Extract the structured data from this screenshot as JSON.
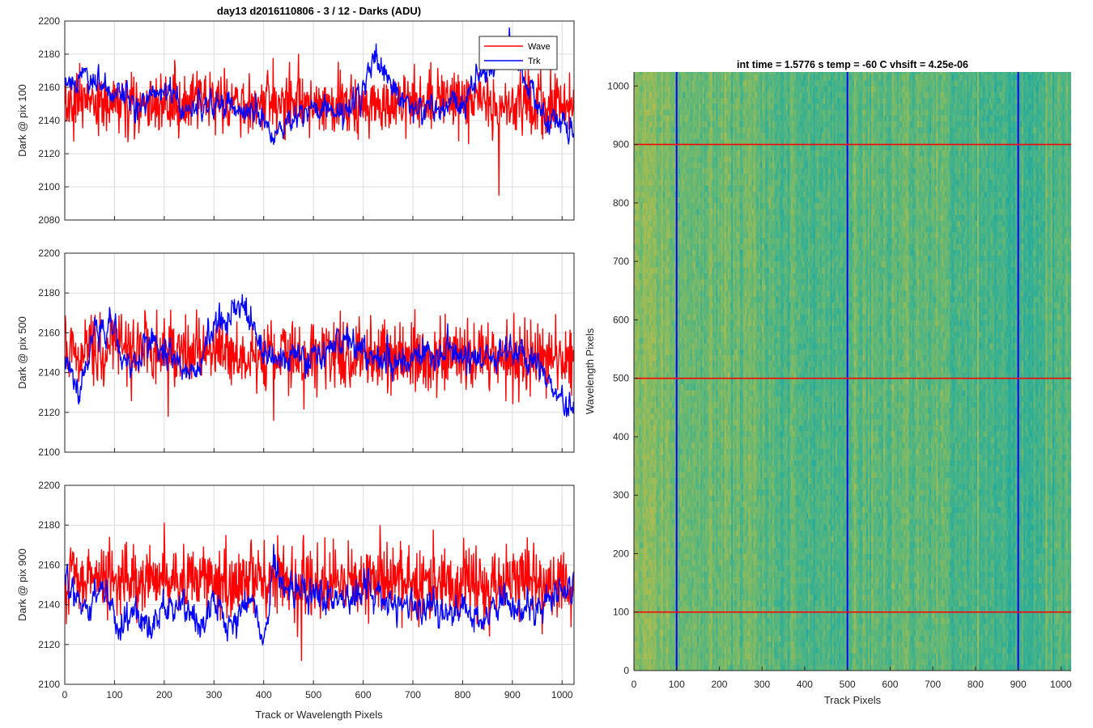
{
  "chart_data": [
    {
      "type": "line",
      "title": "day13 d2016110806 - 3 / 12 - Darks (ADU)",
      "xlabel": "",
      "ylabel": "Dark @ pix 100",
      "xlim": [
        0,
        1024
      ],
      "ylim": [
        2080,
        2200
      ],
      "xticks": [],
      "yticks": [
        2080,
        2100,
        2120,
        2140,
        2160,
        2180,
        2200
      ],
      "grid": true,
      "legend": {
        "placement": "top-right",
        "entries": [
          "Wave",
          "Trk"
        ]
      },
      "series": [
        {
          "name": "Wave",
          "color": "#ff0000",
          "x_range": [
            0,
            1023
          ],
          "mean": 2151,
          "noise": 9,
          "anchors": [
            [
              0,
              2150
            ],
            [
              150,
              2151
            ],
            [
              300,
              2150
            ],
            [
              450,
              2151
            ],
            [
              600,
              2150
            ],
            [
              750,
              2151
            ],
            [
              900,
              2150
            ],
            [
              1023,
              2150
            ]
          ],
          "extremes": [
            [
              873,
              2095
            ],
            [
              860,
              2128
            ]
          ]
        },
        {
          "name": "Trk",
          "color": "#0000ff",
          "x_range": [
            0,
            1023
          ],
          "noise": 3.5,
          "anchors": [
            [
              0,
              2160
            ],
            [
              40,
              2168
            ],
            [
              80,
              2160
            ],
            [
              130,
              2150
            ],
            [
              180,
              2156
            ],
            [
              200,
              2162
            ],
            [
              240,
              2146
            ],
            [
              280,
              2148
            ],
            [
              320,
              2150
            ],
            [
              380,
              2146
            ],
            [
              420,
              2132
            ],
            [
              460,
              2143
            ],
            [
              520,
              2150
            ],
            [
              560,
              2146
            ],
            [
              600,
              2160
            ],
            [
              625,
              2178
            ],
            [
              660,
              2158
            ],
            [
              700,
              2150
            ],
            [
              740,
              2146
            ],
            [
              780,
              2152
            ],
            [
              800,
              2146
            ],
            [
              830,
              2165
            ],
            [
              860,
              2172
            ],
            [
              880,
              2175
            ],
            [
              900,
              2188
            ],
            [
              930,
              2160
            ],
            [
              960,
              2145
            ],
            [
              990,
              2142
            ],
            [
              1023,
              2136
            ]
          ]
        }
      ]
    },
    {
      "type": "line",
      "title": "",
      "xlabel": "",
      "ylabel": "Dark @ pix 500",
      "xlim": [
        0,
        1024
      ],
      "ylim": [
        2100,
        2200
      ],
      "xticks": [],
      "yticks": [
        2100,
        2120,
        2140,
        2160,
        2180,
        2200
      ],
      "grid": true,
      "series": [
        {
          "name": "Wave",
          "color": "#ff0000",
          "x_range": [
            0,
            1023
          ],
          "noise": 9,
          "anchors": [
            [
              0,
              2150
            ],
            [
              200,
              2151
            ],
            [
              400,
              2150
            ],
            [
              600,
              2148
            ],
            [
              800,
              2148
            ],
            [
              1023,
              2146
            ]
          ],
          "extremes": [
            [
              208,
              2118
            ],
            [
              420,
              2116
            ]
          ]
        },
        {
          "name": "Trk",
          "color": "#0000ff",
          "x_range": [
            0,
            1023
          ],
          "noise": 3.5,
          "anchors": [
            [
              0,
              2150
            ],
            [
              30,
              2130
            ],
            [
              60,
              2162
            ],
            [
              100,
              2160
            ],
            [
              130,
              2140
            ],
            [
              170,
              2156
            ],
            [
              210,
              2150
            ],
            [
              260,
              2140
            ],
            [
              300,
              2160
            ],
            [
              340,
              2174
            ],
            [
              370,
              2168
            ],
            [
              400,
              2150
            ],
            [
              440,
              2146
            ],
            [
              480,
              2150
            ],
            [
              520,
              2150
            ],
            [
              560,
              2158
            ],
            [
              600,
              2150
            ],
            [
              640,
              2146
            ],
            [
              680,
              2142
            ],
            [
              720,
              2148
            ],
            [
              760,
              2150
            ],
            [
              820,
              2146
            ],
            [
              880,
              2150
            ],
            [
              920,
              2152
            ],
            [
              960,
              2140
            ],
            [
              1000,
              2124
            ],
            [
              1023,
              2120
            ]
          ]
        }
      ]
    },
    {
      "type": "line",
      "title": "",
      "xlabel": "Track or Wavelength Pixels",
      "ylabel": "Dark @ pix 900",
      "xlim": [
        0,
        1024
      ],
      "ylim": [
        2100,
        2200
      ],
      "xticks": [
        0,
        100,
        200,
        300,
        400,
        500,
        600,
        700,
        800,
        900,
        1000
      ],
      "yticks": [
        2100,
        2120,
        2140,
        2160,
        2180,
        2200
      ],
      "grid": true,
      "series": [
        {
          "name": "Wave",
          "color": "#ff0000",
          "x_range": [
            0,
            1023
          ],
          "noise": 9,
          "anchors": [
            [
              0,
              2152
            ],
            [
              200,
              2153
            ],
            [
              400,
              2152
            ],
            [
              600,
              2152
            ],
            [
              800,
              2151
            ],
            [
              1023,
              2150
            ]
          ],
          "extremes": [
            [
              200,
              2181
            ],
            [
              476,
              2112
            ]
          ]
        },
        {
          "name": "Trk",
          "color": "#0000ff",
          "x_range": [
            0,
            1023
          ],
          "noise": 3.5,
          "anchors": [
            [
              0,
              2152
            ],
            [
              40,
              2138
            ],
            [
              80,
              2150
            ],
            [
              110,
              2128
            ],
            [
              140,
              2142
            ],
            [
              170,
              2128
            ],
            [
              200,
              2138
            ],
            [
              240,
              2142
            ],
            [
              270,
              2126
            ],
            [
              300,
              2140
            ],
            [
              340,
              2128
            ],
            [
              380,
              2148
            ],
            [
              400,
              2118
            ],
            [
              420,
              2162
            ],
            [
              440,
              2150
            ],
            [
              480,
              2146
            ],
            [
              520,
              2144
            ],
            [
              560,
              2142
            ],
            [
              600,
              2150
            ],
            [
              640,
              2142
            ],
            [
              700,
              2140
            ],
            [
              760,
              2136
            ],
            [
              800,
              2140
            ],
            [
              840,
              2130
            ],
            [
              880,
              2142
            ],
            [
              920,
              2138
            ],
            [
              960,
              2142
            ],
            [
              1000,
              2146
            ],
            [
              1023,
              2152
            ]
          ]
        }
      ]
    },
    {
      "type": "heatmap",
      "title": "int time = 1.5776 s    temp = -60 C    vhsift = 4.25e-06",
      "xlabel": "Track Pixels",
      "ylabel": "Wavelength Pixels",
      "xlim": [
        0,
        1024
      ],
      "ylim": [
        0,
        1024
      ],
      "xticks": [
        0,
        100,
        200,
        300,
        400,
        500,
        600,
        700,
        800,
        900,
        1000
      ],
      "yticks": [
        0,
        100,
        200,
        300,
        400,
        500,
        600,
        700,
        800,
        900,
        1000
      ],
      "colormap": [
        "#1fa8a0",
        "#3bb18f",
        "#6bb870",
        "#9fbc55",
        "#c2ba4a"
      ],
      "column_profile": [
        [
          0,
          0.72
        ],
        [
          40,
          0.62
        ],
        [
          90,
          0.58
        ],
        [
          130,
          0.46
        ],
        [
          180,
          0.55
        ],
        [
          240,
          0.5
        ],
        [
          300,
          0.4
        ],
        [
          370,
          0.38
        ],
        [
          420,
          0.33
        ],
        [
          470,
          0.34
        ],
        [
          520,
          0.46
        ],
        [
          570,
          0.52
        ],
        [
          620,
          0.45
        ],
        [
          680,
          0.4
        ],
        [
          740,
          0.36
        ],
        [
          800,
          0.31
        ],
        [
          850,
          0.28
        ],
        [
          900,
          0.26
        ],
        [
          950,
          0.32
        ],
        [
          1000,
          0.4
        ],
        [
          1024,
          0.46
        ]
      ],
      "vertical_lines": {
        "x": [
          100,
          500,
          900
        ],
        "color": "#0000ff"
      },
      "horizontal_lines": {
        "y": [
          100,
          500,
          900
        ],
        "color": "#ff0000"
      }
    }
  ]
}
